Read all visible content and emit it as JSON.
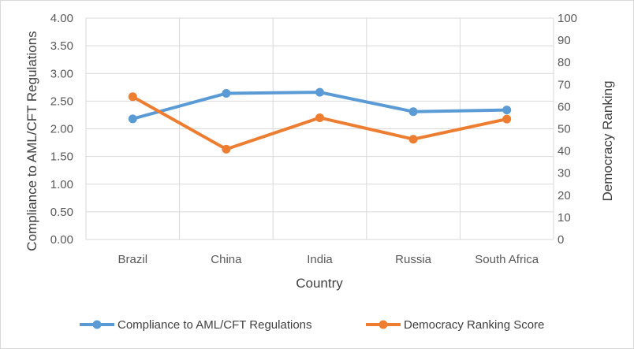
{
  "chart_data": {
    "type": "line",
    "title": "",
    "xlabel": "Country",
    "ylabel": "Compliance to AML/CFT Regulations",
    "y2label": "Democracy Ranking",
    "categories": [
      "Brazil",
      "China",
      "India",
      "Russia",
      "South Africa"
    ],
    "ylim": [
      0,
      4
    ],
    "y_ticks": [
      "0.00",
      "0.50",
      "1.00",
      "1.50",
      "2.00",
      "2.50",
      "3.00",
      "3.50",
      "4.00"
    ],
    "y2lim": [
      0,
      100
    ],
    "y2_ticks": [
      "0",
      "10",
      "20",
      "30",
      "40",
      "50",
      "60",
      "70",
      "80",
      "90",
      "100"
    ],
    "grid": true,
    "legend_position": "bottom",
    "series": [
      {
        "name": "Compliance to AML/CFT Regulations",
        "axis": "left",
        "color": "#5b9bd5",
        "values": [
          2.18,
          2.64,
          2.66,
          2.31,
          2.34
        ]
      },
      {
        "name": "Democracy Ranking Score",
        "axis": "right",
        "color": "#ed7d31",
        "values": [
          64.5,
          40.8,
          55,
          45.3,
          54.4
        ]
      }
    ]
  }
}
